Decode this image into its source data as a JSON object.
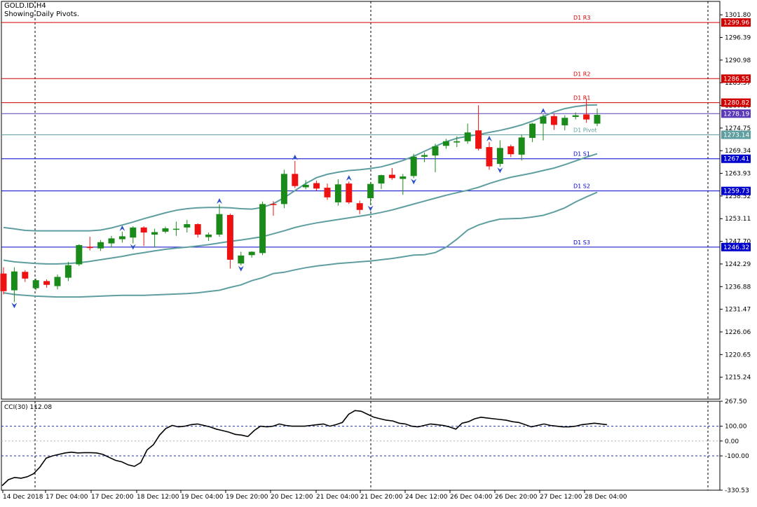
{
  "window": {
    "symbol_label": "GOLD.ID,H4",
    "subtitle": "Showing Daily Pivots."
  },
  "chart_data": [
    {
      "type": "candlestick",
      "title": "GOLD.ID,H4",
      "ylim": [
        1210.0,
        1305.0
      ],
      "grid": false,
      "price_ticks": [
        "1301.80",
        "1296.39",
        "1290.98",
        "1285.57",
        "1280.16",
        "1274.75",
        "1269.34",
        "1263.93",
        "1258.52",
        "1253.11",
        "1247.70",
        "1242.29",
        "1236.88",
        "1231.47",
        "1226.06",
        "1220.65",
        "1215.24"
      ],
      "time_ticks": [
        "14 Dec 2018",
        "17 Dec 04:00",
        "17 Dec 20:00",
        "18 Dec 12:00",
        "19 Dec 04:00",
        "19 Dec 20:00",
        "20 Dec 12:00",
        "21 Dec 04:00",
        "21 Dec 20:00",
        "24 Dec 12:00",
        "26 Dec 04:00",
        "26 Dec 20:00",
        "27 Dec 12:00",
        "28 Dec 04:00"
      ],
      "pivot_levels": [
        {
          "name": "D1 R3",
          "value": 1299.96,
          "label": "1299.96",
          "color": "#d00000"
        },
        {
          "name": "D1 R2",
          "value": 1286.55,
          "label": "1286.55",
          "color": "#d00000"
        },
        {
          "name": "D1 R1",
          "value": 1280.82,
          "label": "1280.82",
          "color": "#d00000"
        },
        {
          "name": "",
          "value": 1278.19,
          "label": "1278.19",
          "color": "#5a3ab8"
        },
        {
          "name": "D1 Pivot",
          "value": 1273.14,
          "label": "1273.14",
          "color": "#5f9ea0"
        },
        {
          "name": "D1 S1",
          "value": 1267.41,
          "label": "1267.41",
          "color": "#0000cc"
        },
        {
          "name": "D1 S2",
          "value": 1259.73,
          "label": "1259.73",
          "color": "#0000cc"
        },
        {
          "name": "D1 S3",
          "value": 1246.32,
          "label": "1246.32",
          "color": "#0000cc"
        }
      ],
      "colors": {
        "bull": "#1a8a1a",
        "bear": "#ee1111",
        "band": "#5f9ea0",
        "fractal": "#2b50c8"
      },
      "candles": [
        {
          "o": 1240.0,
          "h": 1241.5,
          "l": 1235.0,
          "c": 1235.8
        },
        {
          "o": 1236.0,
          "h": 1241.5,
          "l": 1233.2,
          "c": 1240.5
        },
        {
          "o": 1240.4,
          "h": 1240.8,
          "l": 1238.0,
          "c": 1238.8
        },
        {
          "o": 1236.5,
          "h": 1238.8,
          "l": 1236.0,
          "c": 1238.4
        },
        {
          "o": 1238.2,
          "h": 1238.6,
          "l": 1236.6,
          "c": 1237.3
        },
        {
          "o": 1237.0,
          "h": 1239.8,
          "l": 1236.2,
          "c": 1239.2
        },
        {
          "o": 1239.0,
          "h": 1242.8,
          "l": 1238.2,
          "c": 1242.0
        },
        {
          "o": 1242.2,
          "h": 1247.0,
          "l": 1241.8,
          "c": 1246.8
        },
        {
          "o": 1246.4,
          "h": 1248.8,
          "l": 1245.5,
          "c": 1246.1
        },
        {
          "o": 1246.0,
          "h": 1248.0,
          "l": 1245.4,
          "c": 1247.5
        },
        {
          "o": 1247.2,
          "h": 1249.0,
          "l": 1246.2,
          "c": 1248.4
        },
        {
          "o": 1248.2,
          "h": 1250.0,
          "l": 1247.4,
          "c": 1248.9
        },
        {
          "o": 1248.6,
          "h": 1251.3,
          "l": 1247.2,
          "c": 1251.0
        },
        {
          "o": 1251.0,
          "h": 1251.3,
          "l": 1246.6,
          "c": 1249.8
        },
        {
          "o": 1249.3,
          "h": 1250.7,
          "l": 1246.2,
          "c": 1249.9
        },
        {
          "o": 1250.0,
          "h": 1251.2,
          "l": 1249.6,
          "c": 1250.8
        },
        {
          "o": 1250.6,
          "h": 1252.4,
          "l": 1249.0,
          "c": 1250.7
        },
        {
          "o": 1251.0,
          "h": 1252.8,
          "l": 1249.8,
          "c": 1251.8
        },
        {
          "o": 1251.8,
          "h": 1252.0,
          "l": 1248.6,
          "c": 1249.3
        },
        {
          "o": 1248.7,
          "h": 1249.8,
          "l": 1247.8,
          "c": 1249.3
        },
        {
          "o": 1249.3,
          "h": 1256.5,
          "l": 1248.8,
          "c": 1254.2
        },
        {
          "o": 1254.0,
          "h": 1254.3,
          "l": 1241.2,
          "c": 1243.3
        },
        {
          "o": 1242.4,
          "h": 1245.2,
          "l": 1242.0,
          "c": 1244.3
        },
        {
          "o": 1244.4,
          "h": 1245.3,
          "l": 1243.8,
          "c": 1245.2
        },
        {
          "o": 1244.9,
          "h": 1257.2,
          "l": 1244.4,
          "c": 1256.6
        },
        {
          "o": 1256.6,
          "h": 1257.3,
          "l": 1253.8,
          "c": 1256.5
        },
        {
          "o": 1256.6,
          "h": 1264.8,
          "l": 1255.6,
          "c": 1263.8
        },
        {
          "o": 1263.8,
          "h": 1266.9,
          "l": 1260.4,
          "c": 1260.9
        },
        {
          "o": 1260.6,
          "h": 1262.3,
          "l": 1260.1,
          "c": 1261.2
        },
        {
          "o": 1261.6,
          "h": 1262.2,
          "l": 1259.8,
          "c": 1260.3
        },
        {
          "o": 1260.5,
          "h": 1261.5,
          "l": 1257.6,
          "c": 1258.2
        },
        {
          "o": 1257.0,
          "h": 1262.5,
          "l": 1256.2,
          "c": 1261.3
        },
        {
          "o": 1261.5,
          "h": 1262.0,
          "l": 1256.6,
          "c": 1257.0
        },
        {
          "o": 1256.8,
          "h": 1257.4,
          "l": 1254.2,
          "c": 1255.2
        },
        {
          "o": 1258.0,
          "h": 1261.9,
          "l": 1256.4,
          "c": 1261.4
        },
        {
          "o": 1261.5,
          "h": 1263.6,
          "l": 1260.2,
          "c": 1263.5
        },
        {
          "o": 1263.6,
          "h": 1265.2,
          "l": 1262.4,
          "c": 1262.8
        },
        {
          "o": 1262.6,
          "h": 1263.8,
          "l": 1258.8,
          "c": 1263.2
        },
        {
          "o": 1263.3,
          "h": 1268.6,
          "l": 1262.8,
          "c": 1267.9
        },
        {
          "o": 1267.9,
          "h": 1268.9,
          "l": 1266.6,
          "c": 1268.3
        },
        {
          "o": 1268.2,
          "h": 1271.0,
          "l": 1264.2,
          "c": 1270.4
        },
        {
          "o": 1270.5,
          "h": 1272.2,
          "l": 1269.8,
          "c": 1271.6
        },
        {
          "o": 1271.3,
          "h": 1272.8,
          "l": 1270.2,
          "c": 1271.6
        },
        {
          "o": 1271.6,
          "h": 1275.8,
          "l": 1271.0,
          "c": 1273.7
        },
        {
          "o": 1274.2,
          "h": 1280.2,
          "l": 1269.4,
          "c": 1269.8
        },
        {
          "o": 1270.2,
          "h": 1271.4,
          "l": 1264.8,
          "c": 1265.6
        },
        {
          "o": 1266.2,
          "h": 1271.8,
          "l": 1265.5,
          "c": 1270.0
        },
        {
          "o": 1270.4,
          "h": 1270.8,
          "l": 1267.8,
          "c": 1268.5
        },
        {
          "o": 1268.4,
          "h": 1273.2,
          "l": 1267.0,
          "c": 1272.5
        },
        {
          "o": 1272.4,
          "h": 1276.0,
          "l": 1271.4,
          "c": 1275.8
        },
        {
          "o": 1275.8,
          "h": 1278.0,
          "l": 1271.8,
          "c": 1277.5
        },
        {
          "o": 1277.6,
          "h": 1278.2,
          "l": 1274.3,
          "c": 1275.5
        },
        {
          "o": 1275.4,
          "h": 1277.8,
          "l": 1274.2,
          "c": 1277.2
        },
        {
          "o": 1277.4,
          "h": 1278.5,
          "l": 1276.8,
          "c": 1277.8
        },
        {
          "o": 1278.0,
          "h": 1281.8,
          "l": 1276.0,
          "c": 1276.8
        },
        {
          "o": 1275.8,
          "h": 1279.4,
          "l": 1275.2,
          "c": 1277.9
        }
      ],
      "bands": {
        "upper": [
          1251.0,
          1250.7,
          1250.3,
          1250.2,
          1250.2,
          1250.2,
          1250.2,
          1250.2,
          1250.2,
          1250.4,
          1250.9,
          1251.6,
          1252.3,
          1253.1,
          1253.8,
          1254.5,
          1255.1,
          1255.5,
          1255.7,
          1255.8,
          1255.8,
          1255.7,
          1255.5,
          1255.4,
          1255.8,
          1256.7,
          1258.1,
          1259.8,
          1261.5,
          1262.9,
          1263.7,
          1264.2,
          1264.6,
          1264.8,
          1265.1,
          1265.5,
          1266.2,
          1267.0,
          1268.0,
          1269.2,
          1270.4,
          1271.5,
          1272.3,
          1272.8,
          1273.2,
          1273.7,
          1274.2,
          1274.8,
          1275.5,
          1276.4,
          1277.5,
          1278.6,
          1279.4,
          1279.9,
          1280.2,
          1280.3
        ],
        "middle": [
          1243.2,
          1242.8,
          1242.6,
          1242.4,
          1242.3,
          1242.3,
          1242.4,
          1242.6,
          1242.9,
          1243.3,
          1243.7,
          1244.1,
          1244.6,
          1245.0,
          1245.4,
          1245.8,
          1246.1,
          1246.3,
          1246.6,
          1246.9,
          1247.3,
          1247.7,
          1248.0,
          1248.4,
          1248.8,
          1249.5,
          1250.2,
          1251.0,
          1251.6,
          1252.1,
          1252.5,
          1252.9,
          1253.3,
          1253.7,
          1254.1,
          1254.6,
          1255.2,
          1255.9,
          1256.6,
          1257.3,
          1258.0,
          1258.7,
          1259.3,
          1259.9,
          1260.6,
          1261.5,
          1262.3,
          1263.0,
          1263.5,
          1264.0,
          1264.6,
          1265.2,
          1266.0,
          1266.9,
          1267.8,
          1268.6
        ],
        "lower": [
          1235.4,
          1235.0,
          1234.8,
          1234.6,
          1234.5,
          1234.4,
          1234.4,
          1234.4,
          1234.5,
          1234.6,
          1234.7,
          1234.8,
          1234.8,
          1234.8,
          1234.9,
          1235.0,
          1235.1,
          1235.2,
          1235.4,
          1235.7,
          1236.0,
          1236.7,
          1237.3,
          1238.3,
          1239.0,
          1240.0,
          1240.3,
          1240.9,
          1241.4,
          1241.8,
          1242.1,
          1242.4,
          1242.6,
          1242.8,
          1243.0,
          1243.3,
          1243.6,
          1244.0,
          1244.4,
          1244.5,
          1245.0,
          1246.3,
          1248.2,
          1250.4,
          1251.6,
          1252.4,
          1253.0,
          1253.1,
          1253.2,
          1253.5,
          1253.9,
          1254.7,
          1255.7,
          1257.1,
          1258.3,
          1259.4
        ]
      },
      "fractals_up": [
        11,
        20,
        27,
        32,
        45,
        50
      ],
      "fractals_down": [
        1,
        12,
        22,
        34,
        38,
        46
      ]
    },
    {
      "type": "line",
      "title": "CCI(30) 112.08",
      "ylim": [
        -330.53,
        267.5
      ],
      "y_ticks": [
        "267.50",
        "100.00",
        "0.00",
        "-100.00",
        "-330.53"
      ],
      "levels": [
        100,
        0,
        -100
      ],
      "series": [
        {
          "values": [
            -300,
            -260,
            -245,
            -250,
            -240,
            -220,
            -175,
            -115,
            -100,
            -90,
            -80,
            -75,
            -80,
            -78,
            -78,
            -80,
            -90,
            -110,
            -130,
            -140,
            -160,
            -170,
            -145,
            -60,
            -25,
            40,
            85,
            105,
            95,
            100,
            110,
            115,
            105,
            95,
            80,
            70,
            60,
            45,
            40,
            30,
            70,
            100,
            95,
            100,
            115,
            105,
            100,
            100,
            100,
            105,
            110,
            115,
            100,
            110,
            125,
            180,
            205,
            200,
            180,
            160,
            150,
            140,
            135,
            120,
            115,
            100,
            95,
            105,
            115,
            110,
            105,
            95,
            80,
            120,
            130,
            150,
            160,
            155,
            150,
            145,
            140,
            130,
            125,
            110,
            95,
            105,
            115,
            105,
            100,
            95,
            95,
            100,
            110,
            115,
            120,
            115,
            110
          ]
        }
      ]
    }
  ]
}
